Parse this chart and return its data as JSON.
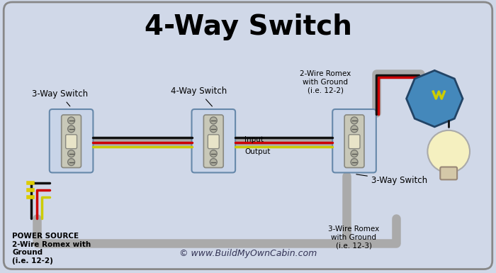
{
  "title": "4-Way Switch",
  "title_fontsize": 28,
  "bg_color": "#d0d8e8",
  "border_color": "#888888",
  "copyright": "© www.BuildMyOwnCabin.com",
  "labels": {
    "switch1": "3-Way Switch",
    "switch2": "4-Way Switch",
    "switch3": "3-Way Switch",
    "power": "POWER SOURCE\n2-Wire Romex with\nGround\n(i.e. 12-2)",
    "romex_top": "2-Wire Romex\nwith Ground\n(i.e. 12-2)",
    "romex_bot": "3-Wire Romex\nwith Ground\n(i.e. 12-3)",
    "input": "Input",
    "output": "Output"
  },
  "colors": {
    "black_wire": "#111111",
    "red_wire": "#cc0000",
    "white_wire": "#cccccc",
    "ground_wire": "#228B22",
    "yellow_wire": "#ddcc00",
    "box_face": "#c8d4e8",
    "box_border": "#888888",
    "switch_body": "#d4d0c0",
    "switch_dark": "#999988",
    "conduit": "#aaaaaa",
    "light_blue": "#88aacc",
    "light_yellow": "#ffffaa",
    "bulb_color": "#f5f0c0"
  }
}
